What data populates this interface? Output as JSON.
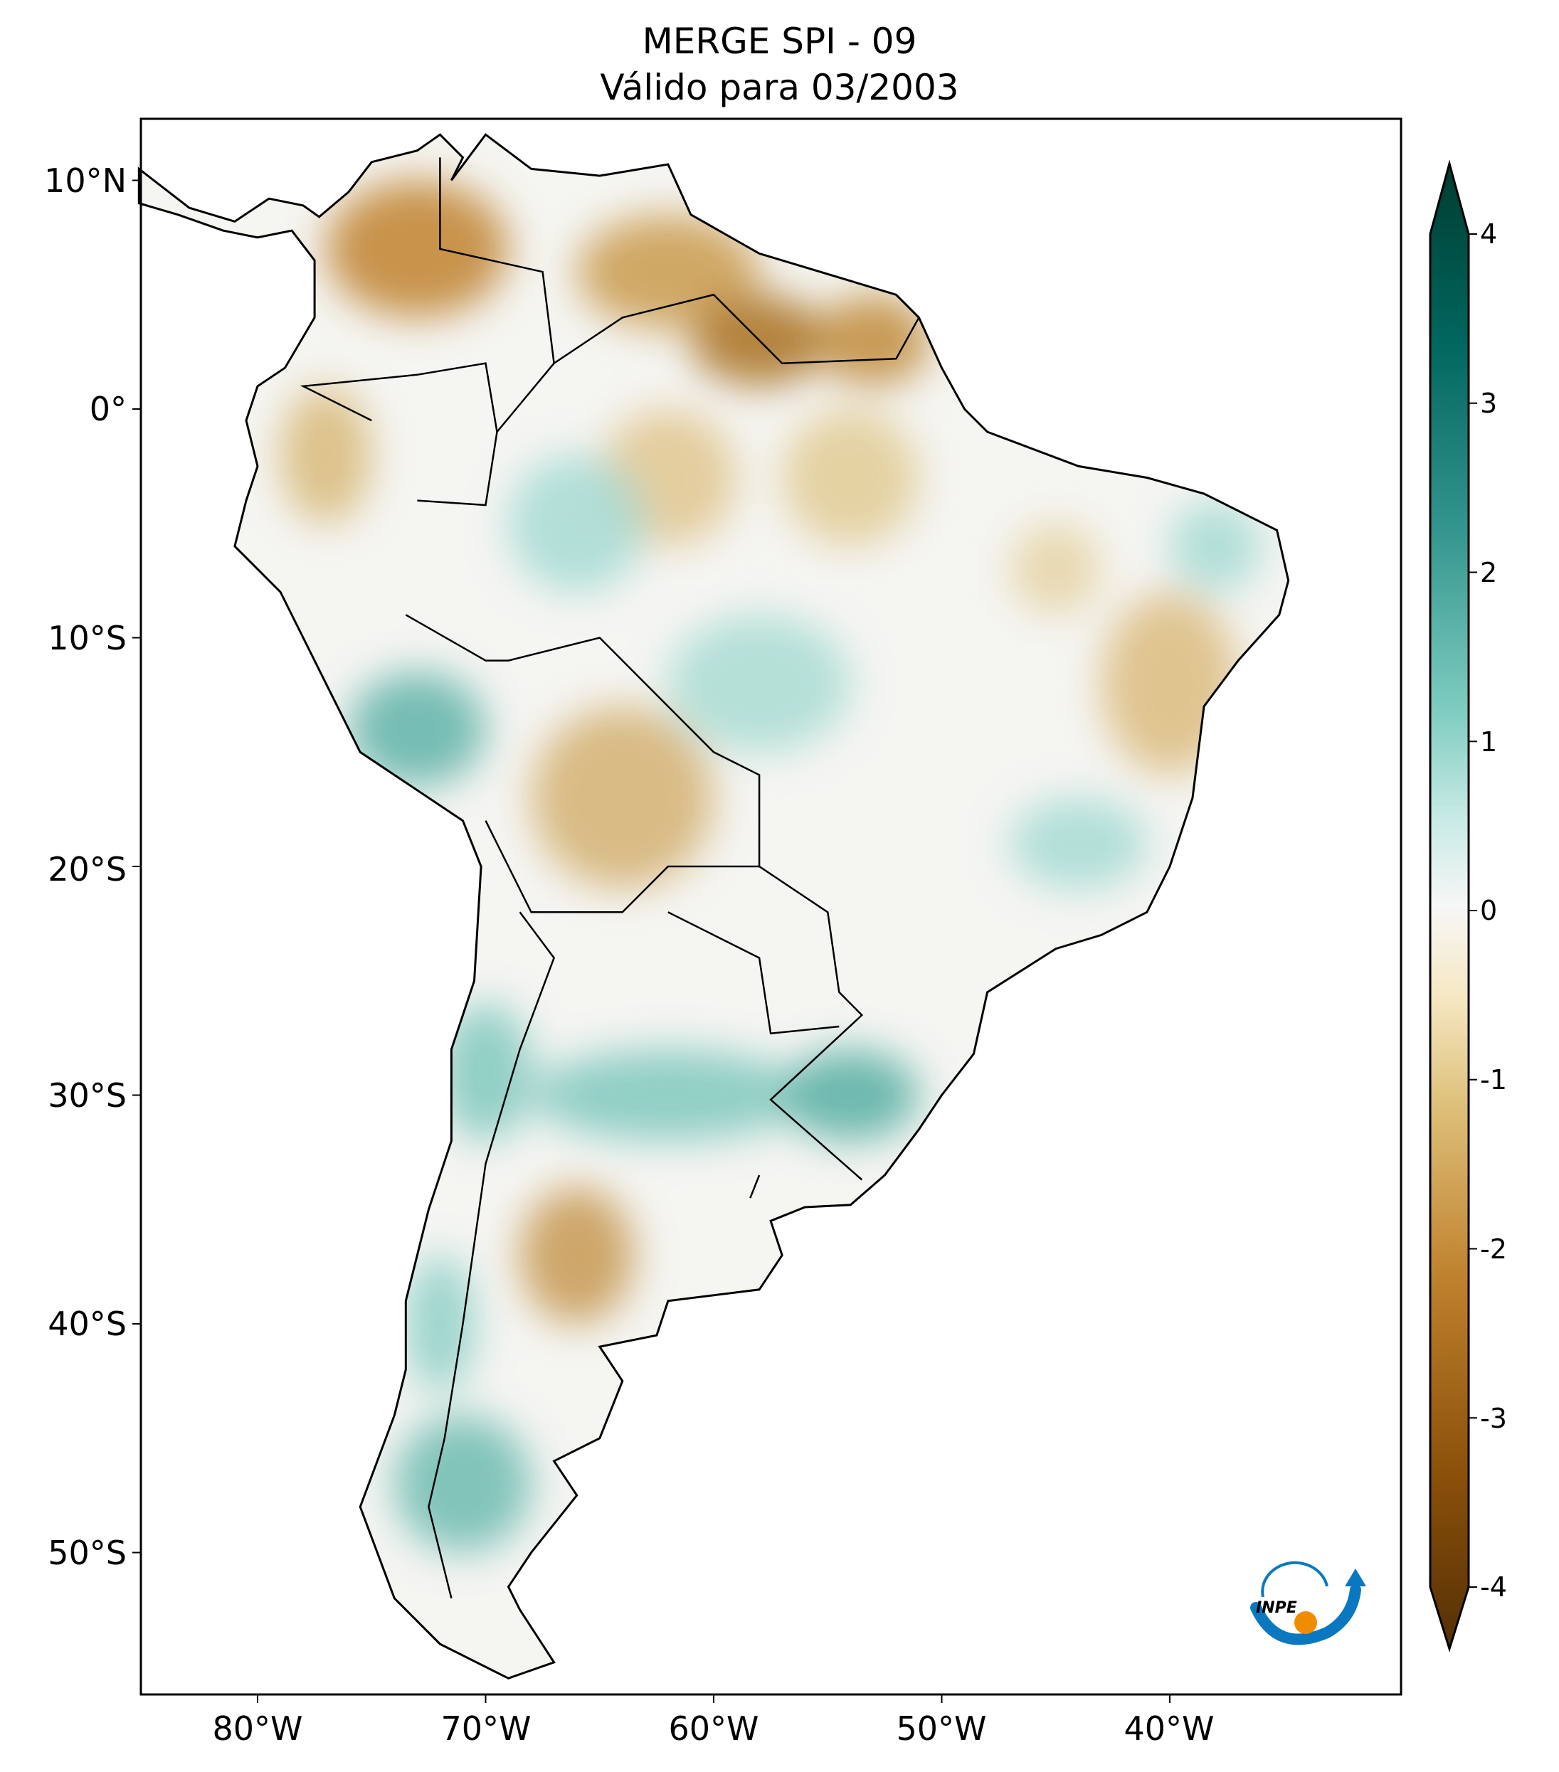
{
  "title": {
    "line1": "MERGE   SPI - 09",
    "line2": "Válido para 03/2003"
  },
  "axes": {
    "lat_ticks": [
      "10°N",
      "0°",
      "10°S",
      "20°S",
      "30°S",
      "40°S",
      "50°S"
    ],
    "lon_ticks": [
      "80°W",
      "70°W",
      "60°W",
      "50°W",
      "40°W"
    ]
  },
  "colorbar": {
    "ticks": [
      "4",
      "3",
      "2",
      "1",
      "0",
      "-1",
      "-2",
      "-3",
      "-4"
    ],
    "range": [
      -4,
      4
    ],
    "extend": "both",
    "colormap": "BrBG",
    "colors": {
      "low": "#543005",
      "mid_low": "#dfc27d",
      "zero": "#f7f7f7",
      "mid_high": "#80cdc1",
      "high": "#003c30"
    }
  },
  "logo": {
    "text": "INPE",
    "colors": {
      "blue": "#0a78c0",
      "orange": "#f08c00"
    }
  }
}
